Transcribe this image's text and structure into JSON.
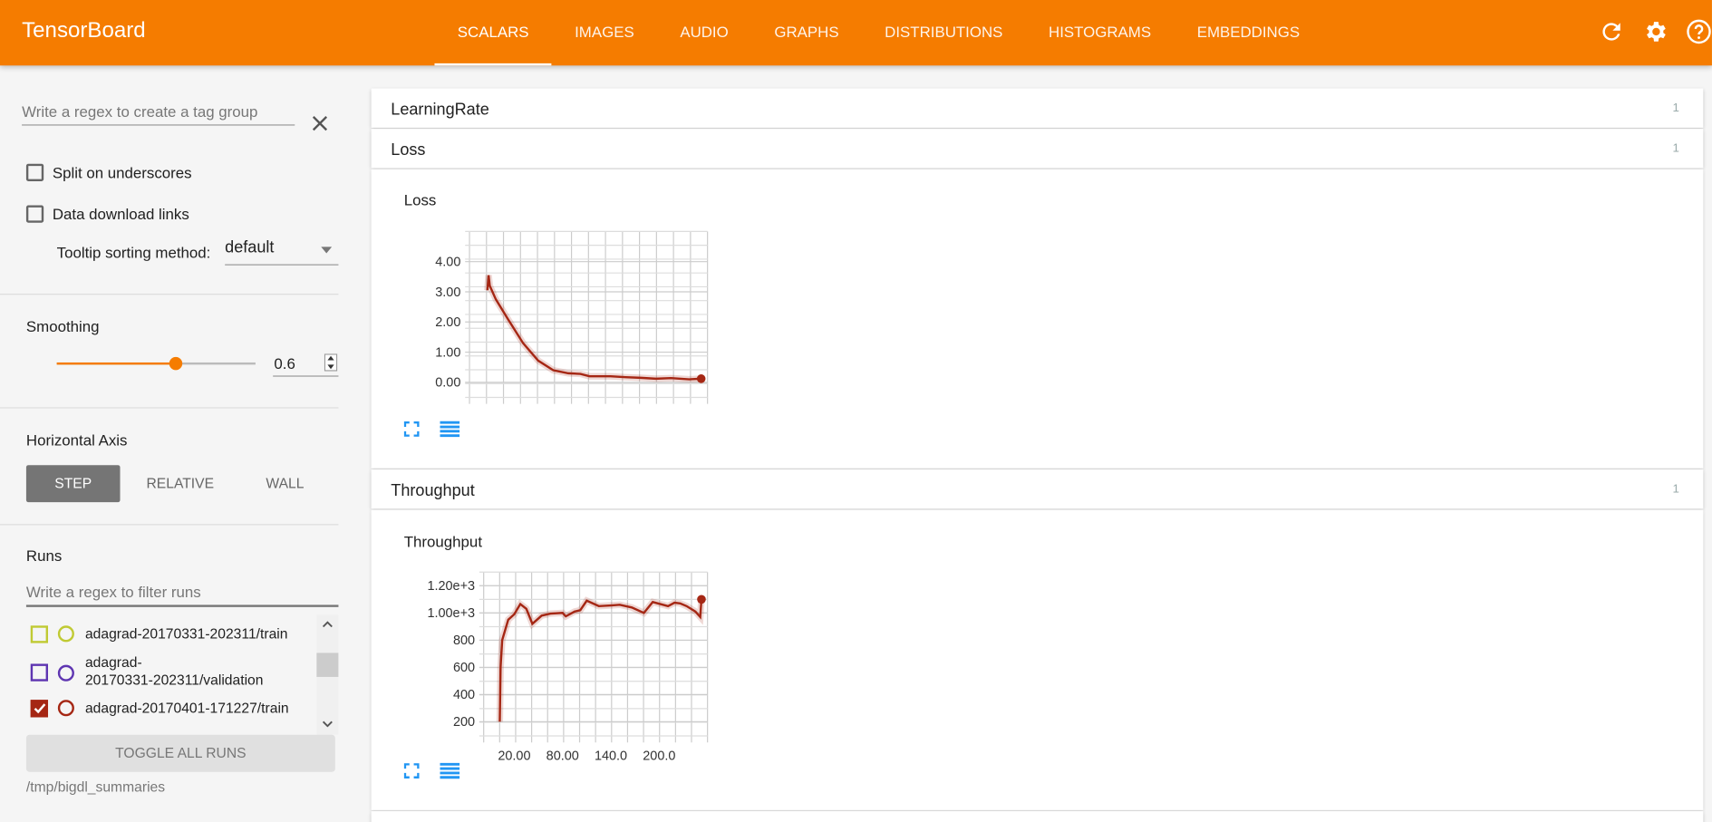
{
  "app": {
    "title": "TensorBoard",
    "accent": "#f57c00"
  },
  "nav": {
    "tabs": [
      {
        "label": "SCALARS",
        "active": true
      },
      {
        "label": "IMAGES"
      },
      {
        "label": "AUDIO"
      },
      {
        "label": "GRAPHS"
      },
      {
        "label": "DISTRIBUTIONS"
      },
      {
        "label": "HISTOGRAMS"
      },
      {
        "label": "EMBEDDINGS"
      }
    ],
    "icons": [
      "refresh-icon",
      "settings-icon",
      "help-icon"
    ]
  },
  "sidebar": {
    "tag_group_placeholder": "Write a regex to create a tag group",
    "split_label": "Split on underscores",
    "split_checked": false,
    "download_label": "Data download links",
    "download_checked": false,
    "tooltip_label": "Tooltip sorting method:",
    "tooltip_value": "default",
    "smoothing_label": "Smoothing",
    "smoothing_value": "0.6",
    "smoothing_fraction": 0.6,
    "axis_label": "Horizontal Axis",
    "axis_options": [
      "STEP",
      "RELATIVE",
      "WALL"
    ],
    "axis_selected": "STEP",
    "runs_label": "Runs",
    "runs_filter_placeholder": "Write a regex to filter runs",
    "runs": [
      {
        "name": "adagrad-20170331-202311/train",
        "color": "#c0ca33",
        "checked": false
      },
      {
        "name": "adagrad-\n20170331-202311/validation",
        "color": "#5e35b1",
        "checked": false
      },
      {
        "name": "adagrad-20170401-171227/train",
        "color": "#a52714",
        "checked": true
      }
    ],
    "toggle_all_label": "TOGGLE ALL RUNS",
    "logdir": "/tmp/bigdl_summaries"
  },
  "main": {
    "categories": [
      {
        "title": "LearningRate",
        "count": "1"
      },
      {
        "title": "Loss",
        "count": "1"
      },
      {
        "title": "Throughput",
        "count": "1"
      }
    ]
  },
  "chart_data": [
    {
      "type": "line",
      "title": "Loss",
      "xlim": [
        -19,
        260
      ],
      "ylim": [
        -0.5,
        5.0
      ],
      "yticks": [
        "4.00",
        "3.00",
        "2.00",
        "1.00",
        "0.00"
      ],
      "ytick_values": [
        4,
        3,
        2,
        1,
        0
      ],
      "xticks": [],
      "xtick_values": [],
      "grid": true,
      "color": "#a52714",
      "x": [
        2,
        3.4,
        4.8,
        11.9,
        26,
        43.8,
        61.5,
        79.2,
        96.9,
        111,
        121.7,
        146.4,
        164.1,
        181.8,
        199.5,
        217.2,
        238.5,
        252.6
      ],
      "y": [
        3.05,
        3.55,
        3.2,
        2.75,
        2.1,
        1.3,
        0.72,
        0.4,
        0.3,
        0.28,
        0.2,
        0.2,
        0.17,
        0.15,
        0.12,
        0.14,
        0.1,
        0.12
      ]
    },
    {
      "type": "line",
      "title": "Throughput",
      "xlim": [
        -18,
        260
      ],
      "ylim": [
        96,
        1300
      ],
      "yticks": [
        "1.20e+3",
        "1.00e+3",
        "800",
        "600",
        "400",
        "200"
      ],
      "ytick_values": [
        1200,
        1000,
        800,
        600,
        400,
        200
      ],
      "xticks": [
        "20.00",
        "80.00",
        "140.0",
        "200.0"
      ],
      "xtick_values": [
        20,
        80,
        140,
        200
      ],
      "grid": true,
      "color": "#a52714",
      "x": [
        2,
        3,
        5,
        12.5,
        20,
        27.5,
        35,
        42.5,
        54,
        65,
        80,
        84,
        95,
        102,
        110,
        125,
        140,
        151,
        166,
        181,
        192,
        211,
        219,
        226,
        234,
        245,
        251,
        252.5
      ],
      "y": [
        200,
        600,
        800,
        950,
        990,
        1065,
        1030,
        920,
        980,
        995,
        1000,
        975,
        1010,
        1020,
        1090,
        1050,
        1055,
        1060,
        1040,
        1000,
        1080,
        1050,
        1075,
        1070,
        1050,
        1010,
        970,
        1100
      ]
    }
  ]
}
